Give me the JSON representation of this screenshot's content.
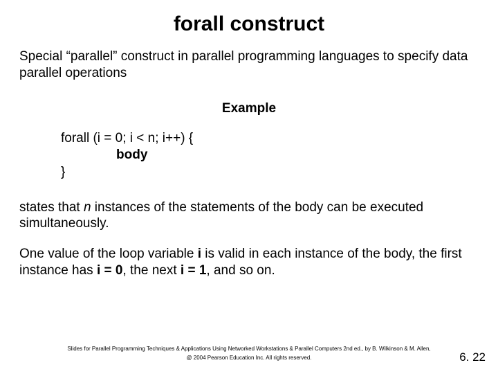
{
  "title": "forall construct",
  "intro": "Special “parallel” construct in parallel programming languages to specify data parallel operations",
  "example_label": "Example",
  "code": {
    "line1": "forall (i = 0; i < n; i++) {",
    "body": "body",
    "line3": "}"
  },
  "desc1_pre": "states that ",
  "desc1_n": "n",
  "desc1_post": " instances of the statements of the body can be executed simultaneously.",
  "desc2_a": "One value of the loop variable ",
  "desc2_i1": "i",
  "desc2_b": " is valid in each instance of the body, the first instance has ",
  "desc2_i2": "i = 0",
  "desc2_c": ", the next ",
  "desc2_i3": "i = 1",
  "desc2_d": ", and so on.",
  "footer1": "Slides for Parallel Programming Techniques & Applications Using Networked Workstations & Parallel Computers 2nd ed., by B. Wilkinson & M. Allen,",
  "footer2": "@ 2004 Pearson Education Inc. All rights reserved.",
  "page_num": "6. 22"
}
